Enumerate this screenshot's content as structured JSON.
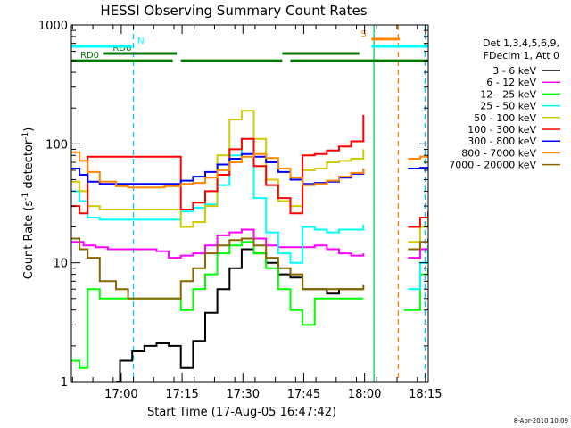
{
  "chart_data": {
    "type": "line",
    "title": "HESSI Observing Summary Count Rates",
    "xlabel": "Start Time (17-Aug-05 16:47:42)",
    "ylabel": "Count Rate (s",
    "ylabel_sup": "-1",
    "ylabel_mid": " detector",
    "ylabel_tail": ")",
    "yscale": "log",
    "ylim": [
      1,
      1000
    ],
    "xlim_min": [
      0,
      88
    ],
    "y_ticks": [
      {
        "value": 1,
        "label": "1"
      },
      {
        "value": 10,
        "label": "10"
      },
      {
        "value": 100,
        "label": "100"
      },
      {
        "value": 1000,
        "label": "1000"
      }
    ],
    "x_ticks": [
      {
        "min": 12.3,
        "label": "17:00"
      },
      {
        "min": 27.3,
        "label": "17:15"
      },
      {
        "min": 42.3,
        "label": "17:30"
      },
      {
        "min": 57.3,
        "label": "17:45"
      },
      {
        "min": 72.3,
        "label": "18:00"
      },
      {
        "min": 87.3,
        "label": "18:15"
      }
    ],
    "legend_header": [
      "Det 1,3,4,5,6,9,",
      "FDecim 1, Att 0"
    ],
    "series": [
      {
        "name": "3 - 6 keV",
        "color": "#000000",
        "points": [
          [
            11,
            1
          ],
          [
            12,
            1.5
          ],
          [
            15,
            1.8
          ],
          [
            18,
            2
          ],
          [
            21,
            2.1
          ],
          [
            24,
            2
          ],
          [
            27,
            1.3
          ],
          [
            30,
            2.2
          ],
          [
            33,
            3.8
          ],
          [
            36,
            6
          ],
          [
            39,
            9
          ],
          [
            42,
            13
          ],
          [
            45,
            12
          ],
          [
            48,
            10
          ],
          [
            51,
            8
          ],
          [
            54,
            7.5
          ],
          [
            57,
            6
          ],
          [
            60,
            6
          ],
          [
            63,
            5.5
          ],
          [
            66,
            6
          ],
          [
            69,
            6
          ],
          [
            72,
            6
          ]
        ]
      },
      {
        "name": "6 - 12 keV",
        "color": "#ff00ff",
        "points": [
          [
            0,
            15
          ],
          [
            3,
            14
          ],
          [
            6,
            13.5
          ],
          [
            9,
            13
          ],
          [
            12,
            13
          ],
          [
            15,
            13
          ],
          [
            18,
            13
          ],
          [
            21,
            12.5
          ],
          [
            24,
            11
          ],
          [
            27,
            11.5
          ],
          [
            30,
            12
          ],
          [
            33,
            14
          ],
          [
            36,
            17
          ],
          [
            39,
            18
          ],
          [
            42,
            19
          ],
          [
            45,
            16
          ],
          [
            48,
            14
          ],
          [
            51,
            13.5
          ],
          [
            54,
            13.5
          ],
          [
            57,
            13.5
          ],
          [
            60,
            14
          ],
          [
            63,
            13
          ],
          [
            66,
            12
          ],
          [
            69,
            11.5
          ],
          [
            72,
            12
          ],
          [
            83,
            11
          ],
          [
            86,
            13
          ],
          [
            88,
            14
          ]
        ]
      },
      {
        "name": "12 - 25 keV",
        "color": "#00ff00",
        "points": [
          [
            0,
            1.5
          ],
          [
            2,
            1.3
          ],
          [
            4,
            6
          ],
          [
            7,
            5
          ],
          [
            11,
            5
          ],
          [
            14,
            5
          ],
          [
            17,
            5
          ],
          [
            20,
            5
          ],
          [
            23,
            5
          ],
          [
            26,
            5
          ],
          [
            27,
            4
          ],
          [
            30,
            6
          ],
          [
            33,
            8
          ],
          [
            36,
            12
          ],
          [
            39,
            14
          ],
          [
            42,
            15
          ],
          [
            45,
            12
          ],
          [
            48,
            9
          ],
          [
            51,
            6
          ],
          [
            54,
            4
          ],
          [
            57,
            3
          ],
          [
            60,
            5
          ],
          [
            63,
            5
          ],
          [
            66,
            5
          ],
          [
            69,
            5
          ],
          [
            72,
            5
          ],
          [
            82,
            4
          ],
          [
            86,
            8
          ],
          [
            88,
            9
          ]
        ]
      },
      {
        "name": "25 - 50 keV",
        "color": "#00ffff",
        "points": [
          [
            0,
            40
          ],
          [
            2,
            33
          ],
          [
            4,
            24
          ],
          [
            7,
            23
          ],
          [
            11,
            23
          ],
          [
            14,
            23
          ],
          [
            17,
            23
          ],
          [
            20,
            23
          ],
          [
            23,
            23
          ],
          [
            26,
            23
          ],
          [
            27,
            27
          ],
          [
            30,
            29
          ],
          [
            33,
            31
          ],
          [
            36,
            45
          ],
          [
            39,
            80
          ],
          [
            42,
            110
          ],
          [
            45,
            35
          ],
          [
            48,
            18
          ],
          [
            51,
            12
          ],
          [
            54,
            10
          ],
          [
            57,
            20
          ],
          [
            60,
            19
          ],
          [
            63,
            18
          ],
          [
            66,
            19
          ],
          [
            69,
            19
          ],
          [
            72,
            21
          ],
          [
            83,
            6
          ],
          [
            86,
            10
          ],
          [
            88,
            14
          ]
        ]
      },
      {
        "name": "50 - 100 keV",
        "color": "#cccc00",
        "points": [
          [
            0,
            48
          ],
          [
            2,
            40
          ],
          [
            4,
            30
          ],
          [
            7,
            28
          ],
          [
            11,
            28
          ],
          [
            14,
            28
          ],
          [
            17,
            28
          ],
          [
            20,
            28
          ],
          [
            23,
            28
          ],
          [
            26,
            28
          ],
          [
            27,
            20
          ],
          [
            30,
            22
          ],
          [
            33,
            30
          ],
          [
            36,
            80
          ],
          [
            39,
            160
          ],
          [
            42,
            190
          ],
          [
            45,
            110
          ],
          [
            48,
            50
          ],
          [
            51,
            33
          ],
          [
            54,
            30
          ],
          [
            57,
            60
          ],
          [
            60,
            62
          ],
          [
            63,
            70
          ],
          [
            66,
            72
          ],
          [
            69,
            75
          ],
          [
            72,
            90
          ],
          [
            83,
            15
          ],
          [
            86,
            20
          ],
          [
            88,
            25
          ]
        ]
      },
      {
        "name": "100 - 300 keV",
        "color": "#ff0000",
        "points": [
          [
            0,
            30
          ],
          [
            2,
            26
          ],
          [
            4,
            78
          ],
          [
            7,
            78
          ],
          [
            11,
            78
          ],
          [
            14,
            78
          ],
          [
            17,
            78
          ],
          [
            20,
            78
          ],
          [
            23,
            78
          ],
          [
            26,
            78
          ],
          [
            27,
            28
          ],
          [
            30,
            32
          ],
          [
            33,
            40
          ],
          [
            36,
            55
          ],
          [
            39,
            90
          ],
          [
            42,
            110
          ],
          [
            45,
            65
          ],
          [
            48,
            45
          ],
          [
            51,
            35
          ],
          [
            54,
            26
          ],
          [
            57,
            80
          ],
          [
            60,
            82
          ],
          [
            63,
            88
          ],
          [
            66,
            95
          ],
          [
            69,
            105
          ],
          [
            72,
            175
          ],
          [
            83,
            20
          ],
          [
            86,
            24
          ],
          [
            88,
            27
          ]
        ]
      },
      {
        "name": "300 - 800 keV",
        "color": "#0000ff",
        "points": [
          [
            0,
            62
          ],
          [
            2,
            55
          ],
          [
            4,
            48
          ],
          [
            7,
            46
          ],
          [
            11,
            46
          ],
          [
            14,
            46
          ],
          [
            17,
            46
          ],
          [
            20,
            46
          ],
          [
            23,
            46
          ],
          [
            26,
            46
          ],
          [
            27,
            49
          ],
          [
            30,
            53
          ],
          [
            33,
            58
          ],
          [
            36,
            67
          ],
          [
            39,
            75
          ],
          [
            42,
            82
          ],
          [
            45,
            78
          ],
          [
            48,
            70
          ],
          [
            51,
            58
          ],
          [
            54,
            50
          ],
          [
            57,
            46
          ],
          [
            60,
            47
          ],
          [
            63,
            48
          ],
          [
            66,
            52
          ],
          [
            69,
            56
          ],
          [
            72,
            62
          ],
          [
            83,
            62
          ],
          [
            86,
            63
          ],
          [
            88,
            64
          ]
        ]
      },
      {
        "name": "800 - 7000 keV",
        "color": "#ff8800",
        "points": [
          [
            0,
            85
          ],
          [
            2,
            72
          ],
          [
            4,
            58
          ],
          [
            7,
            48
          ],
          [
            11,
            44
          ],
          [
            14,
            43
          ],
          [
            17,
            43
          ],
          [
            20,
            43
          ],
          [
            23,
            44
          ],
          [
            26,
            44
          ],
          [
            27,
            46
          ],
          [
            30,
            47
          ],
          [
            33,
            52
          ],
          [
            36,
            60
          ],
          [
            39,
            70
          ],
          [
            42,
            78
          ],
          [
            45,
            82
          ],
          [
            48,
            76
          ],
          [
            51,
            62
          ],
          [
            54,
            52
          ],
          [
            57,
            45
          ],
          [
            60,
            46
          ],
          [
            63,
            49
          ],
          [
            66,
            53
          ],
          [
            69,
            57
          ],
          [
            72,
            62
          ],
          [
            83,
            75
          ],
          [
            86,
            78
          ],
          [
            88,
            80
          ]
        ]
      },
      {
        "name": "7000 - 20000 keV",
        "color": "#886600",
        "points": [
          [
            0,
            16
          ],
          [
            2,
            13
          ],
          [
            4,
            11
          ],
          [
            7,
            7
          ],
          [
            11,
            6
          ],
          [
            14,
            5
          ],
          [
            17,
            5
          ],
          [
            20,
            5
          ],
          [
            23,
            5
          ],
          [
            26,
            5
          ],
          [
            27,
            7
          ],
          [
            30,
            9
          ],
          [
            33,
            12
          ],
          [
            36,
            14
          ],
          [
            39,
            15.5
          ],
          [
            42,
            16
          ],
          [
            45,
            14
          ],
          [
            48,
            11
          ],
          [
            51,
            9
          ],
          [
            54,
            8
          ],
          [
            57,
            6
          ],
          [
            60,
            6
          ],
          [
            63,
            6
          ],
          [
            66,
            6
          ],
          [
            69,
            6
          ],
          [
            72,
            6.5
          ],
          [
            83,
            13
          ],
          [
            86,
            15
          ],
          [
            88,
            16
          ]
        ]
      }
    ],
    "flags": [
      {
        "label": "RD0",
        "color": "#007700",
        "y": 500,
        "segments": [
          [
            0,
            25
          ],
          [
            27,
            52
          ],
          [
            54,
            88
          ]
        ]
      },
      {
        "label": "RD6",
        "color": "#007700",
        "y": 575,
        "segments": [
          [
            8,
            26
          ],
          [
            52,
            71
          ]
        ]
      },
      {
        "label": "N",
        "color": "#00ffff",
        "y": 660,
        "segments": [
          [
            0,
            15
          ],
          [
            74,
            88
          ]
        ]
      },
      {
        "label": "S",
        "color": "#ff8800",
        "y": 760,
        "segments": [
          [
            74,
            81
          ]
        ]
      }
    ],
    "vlines": [
      {
        "min": 15.3,
        "color": "#00ccff",
        "style": "dashed"
      },
      {
        "min": 74.6,
        "color": "#00cc66",
        "style": "solid"
      },
      {
        "min": 80.6,
        "color": "#ff8800",
        "style": "dashed"
      },
      {
        "min": 87.2,
        "color": "#00ccff",
        "style": "dashed"
      }
    ],
    "footer_date": "8-Apr-2010 10:09"
  }
}
